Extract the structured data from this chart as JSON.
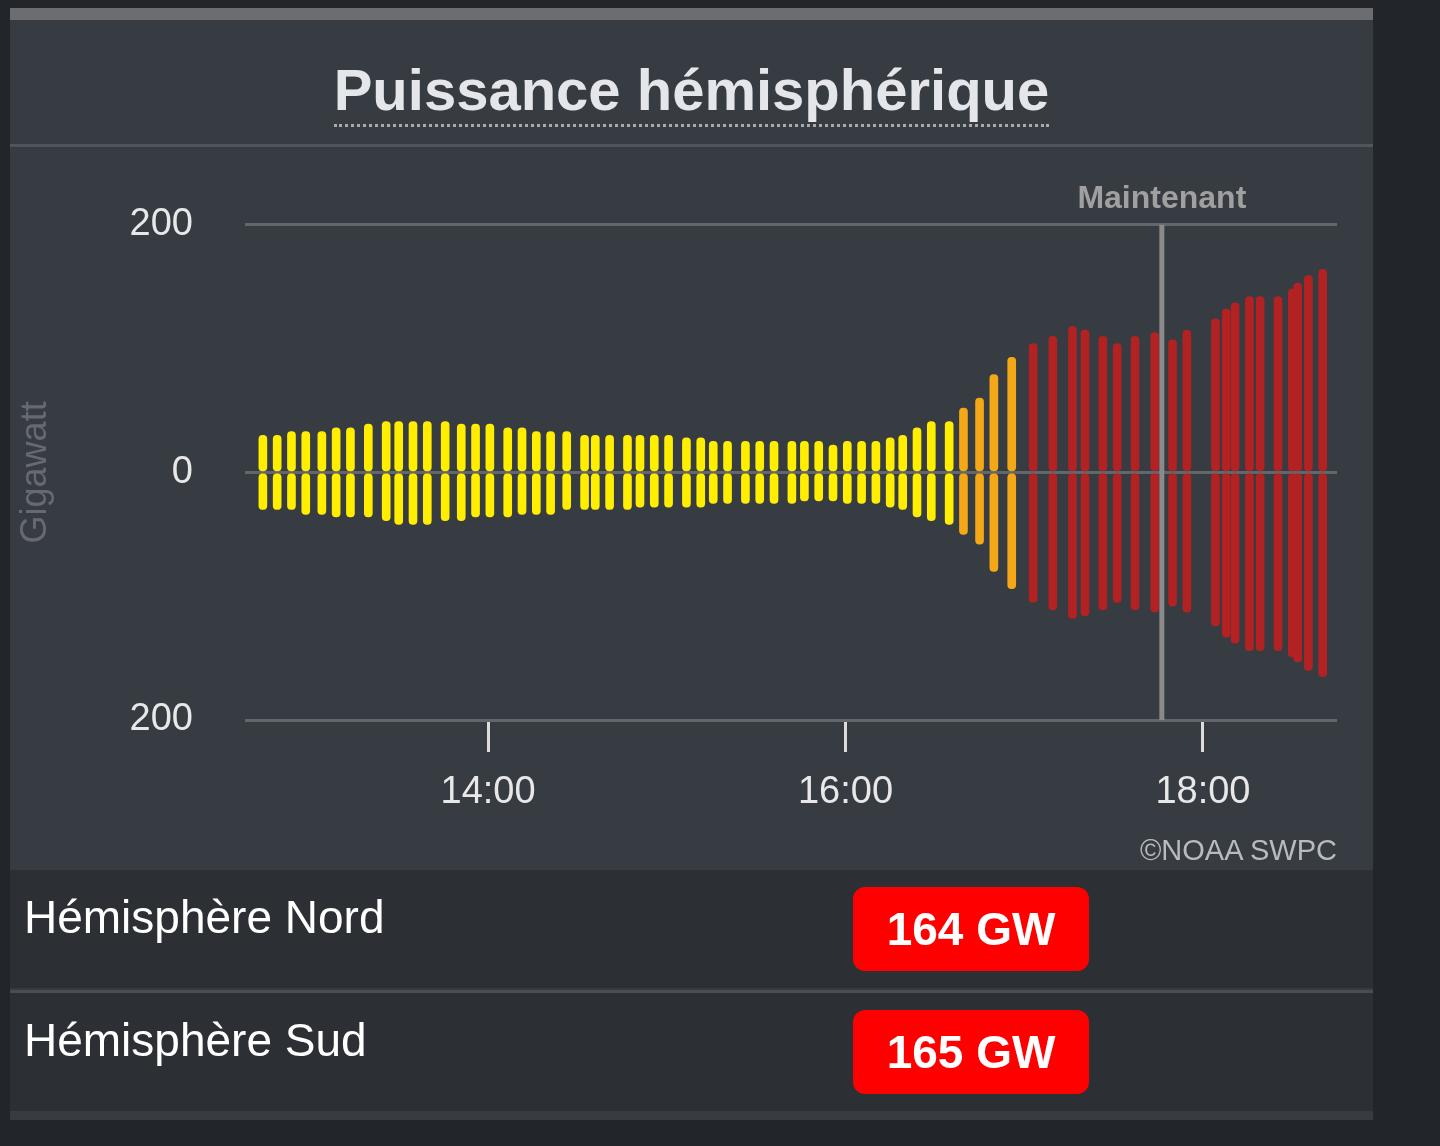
{
  "chart_data": {
    "type": "bar",
    "title": "Puissance hémisphérique",
    "ylabel": "Gigawatt",
    "stacked": true,
    "x": [
      12.74,
      12.82,
      12.9,
      12.98,
      13.07,
      13.15,
      13.23,
      13.33,
      13.43,
      13.5,
      13.58,
      13.66,
      13.76,
      13.85,
      13.93,
      14.01,
      14.11,
      14.19,
      14.27,
      14.35,
      14.44,
      14.54,
      14.6,
      14.68,
      14.78,
      14.85,
      14.93,
      15.01,
      15.11,
      15.19,
      15.26,
      15.34,
      15.44,
      15.52,
      15.6,
      15.7,
      15.77,
      15.85,
      15.93,
      16.01,
      16.09,
      16.17,
      16.25,
      16.32,
      16.4,
      16.48,
      16.58,
      16.66,
      16.75,
      16.83,
      16.93,
      17.05,
      17.16,
      17.27,
      17.34,
      17.44,
      17.52,
      17.62,
      17.73,
      17.83,
      17.91,
      18.07,
      18.13,
      18.18,
      18.26,
      18.32,
      18.42,
      18.5,
      18.53,
      18.59,
      18.67
    ],
    "series": [
      {
        "colors": [
          "#ffee00",
          "#ffee00",
          "#ffee00",
          "#ffee00",
          "#ffee00",
          "#ffee00",
          "#ffee00",
          "#ffee00",
          "#ffee00",
          "#ffee00",
          "#ffee00",
          "#ffee00",
          "#ffee00",
          "#ffee00",
          "#ffee00",
          "#ffee00",
          "#ffee00",
          "#ffee00",
          "#ffee00",
          "#ffee00",
          "#ffee00",
          "#ffee00",
          "#ffee00",
          "#ffee00",
          "#ffee00",
          "#ffee00",
          "#ffee00",
          "#ffee00",
          "#ffee00",
          "#ffee00",
          "#ffee00",
          "#ffee00",
          "#ffee00",
          "#ffee00",
          "#ffee00",
          "#ffee00",
          "#ffee00",
          "#ffee00",
          "#ffee00",
          "#ffee00",
          "#ffee00",
          "#ffee00",
          "#ffee00",
          "#ffee00",
          "#ffee00",
          "#ffee00",
          "#ffee00",
          "#f5a817",
          "#f5a817",
          "#f5a817",
          "#f5a817",
          "#b22222",
          "#b22222",
          "#b22222",
          "#b22222",
          "#b22222",
          "#b22222",
          "#b22222",
          "#b22222",
          "#b22222",
          "#b22222",
          "#b22222",
          "#b22222",
          "#b22222",
          "#b22222",
          "#b22222",
          "#b22222",
          "#b22222",
          "#b22222",
          "#b22222",
          "#b22222"
        ],
        "values": [
          30,
          30,
          33,
          33,
          33,
          36,
          36,
          39,
          41,
          41,
          41,
          41,
          41,
          39,
          39,
          39,
          36,
          36,
          33,
          33,
          33,
          30,
          30,
          30,
          30,
          30,
          30,
          30,
          28,
          28,
          25,
          25,
          25,
          25,
          25,
          25,
          25,
          25,
          22,
          25,
          25,
          25,
          28,
          30,
          36,
          41,
          41,
          52,
          60,
          79,
          93,
          104,
          110,
          118,
          115,
          110,
          104,
          110,
          113,
          107,
          115,
          124,
          132,
          137,
          142,
          142,
          142,
          148,
          153,
          159,
          164
        ]
      },
      {
        "colors": [
          "#ffee00",
          "#ffee00",
          "#ffee00",
          "#ffee00",
          "#ffee00",
          "#ffee00",
          "#ffee00",
          "#ffee00",
          "#ffee00",
          "#ffee00",
          "#ffee00",
          "#ffee00",
          "#ffee00",
          "#ffee00",
          "#ffee00",
          "#ffee00",
          "#ffee00",
          "#ffee00",
          "#ffee00",
          "#ffee00",
          "#ffee00",
          "#ffee00",
          "#ffee00",
          "#ffee00",
          "#ffee00",
          "#ffee00",
          "#ffee00",
          "#ffee00",
          "#ffee00",
          "#ffee00",
          "#ffee00",
          "#ffee00",
          "#ffee00",
          "#ffee00",
          "#ffee00",
          "#ffee00",
          "#ffee00",
          "#ffee00",
          "#ffee00",
          "#ffee00",
          "#ffee00",
          "#ffee00",
          "#ffee00",
          "#ffee00",
          "#ffee00",
          "#ffee00",
          "#ffee00",
          "#f5a817",
          "#f5a817",
          "#f5a817",
          "#f5a817",
          "#b22222",
          "#b22222",
          "#b22222",
          "#b22222",
          "#b22222",
          "#b22222",
          "#b22222",
          "#b22222",
          "#b22222",
          "#b22222",
          "#b22222",
          "#b22222",
          "#b22222",
          "#b22222",
          "#b22222",
          "#b22222",
          "#b22222",
          "#b22222",
          "#b22222",
          "#b22222"
        ],
        "values": [
          -30,
          -30,
          -30,
          -34,
          -34,
          -36,
          -36,
          -36,
          -39,
          -42,
          -42,
          -42,
          -39,
          -39,
          -36,
          -36,
          -36,
          -34,
          -34,
          -34,
          -30,
          -30,
          -30,
          -30,
          -30,
          -28,
          -28,
          -28,
          -28,
          -28,
          -25,
          -25,
          -25,
          -25,
          -25,
          -25,
          -23,
          -23,
          -23,
          -25,
          -25,
          -25,
          -28,
          -30,
          -36,
          -39,
          -42,
          -50,
          -58,
          -80,
          -94,
          -105,
          -111,
          -118,
          -116,
          -111,
          -105,
          -111,
          -113,
          -108,
          -113,
          -124,
          -133,
          -138,
          -144,
          -144,
          -144,
          -149,
          -153,
          -160,
          -165
        ]
      }
    ],
    "xlim": [
      12.64,
      18.75
    ],
    "xticks": [
      {
        "value": 14,
        "label": "14:00"
      },
      {
        "value": 16,
        "label": "16:00"
      },
      {
        "value": 18,
        "label": "18:00"
      }
    ],
    "ylim": [
      -200,
      200
    ],
    "yticks": [
      200,
      0,
      {
        "value": -200,
        "label": "200"
      }
    ],
    "grid": "y",
    "ref_lines": [
      {
        "axis": "x",
        "value": 17.77,
        "label": "Maintenant",
        "color": "#8a8a8a"
      }
    ],
    "annotations": [
      "©NOAA SWPC",
      "Hémisphère Nord",
      "164 GW",
      "Hémisphère Sud",
      "165 GW"
    ]
  }
}
